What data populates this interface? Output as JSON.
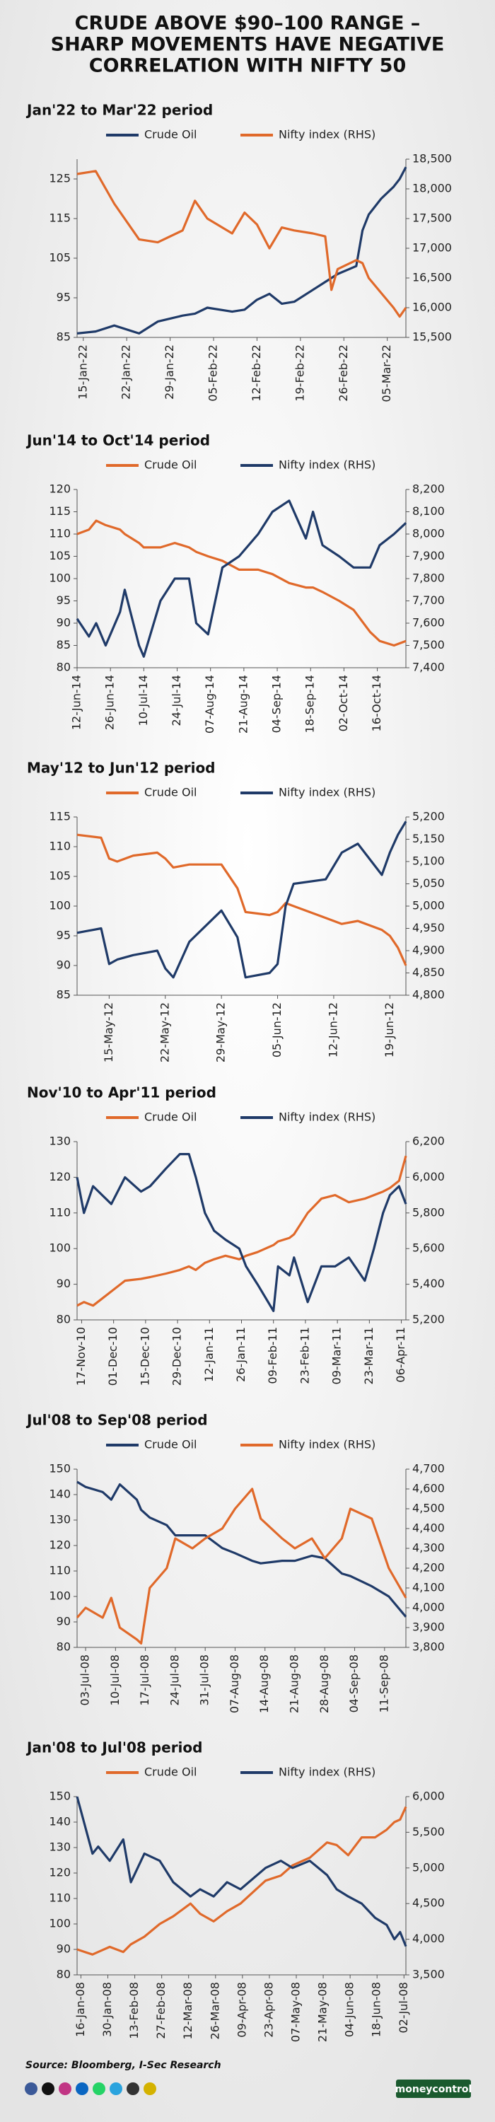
{
  "header": {
    "title_lines": [
      "CRUDE ABOVE $90–100 RANGE –",
      "SHARP MOVEMENTS HAVE NEGATIVE",
      "CORRELATION WITH NIFTY 50"
    ]
  },
  "chart_data": [
    {
      "type": "line",
      "title": "Jan'22 to Mar'22 period",
      "x": [
        "14-Jan-22",
        "17-Jan-22",
        "20-Jan-22",
        "24-Jan-22",
        "27-Jan-22",
        "31-Jan-22",
        "02-Feb-22",
        "04-Feb-22",
        "08-Feb-22",
        "10-Feb-22",
        "12-Feb-22",
        "14-Feb-22",
        "16-Feb-22",
        "18-Feb-22",
        "21-Feb-22",
        "23-Feb-22",
        "24-Feb-22",
        "25-Feb-22",
        "28-Feb-22",
        "01-Mar-22",
        "02-Mar-22",
        "04-Mar-22",
        "06-Mar-22",
        "07-Mar-22",
        "08-Mar-22"
      ],
      "xticks": [
        "15-Jan-22",
        "22-Jan-22",
        "29-Jan-22",
        "05-Feb-22",
        "12-Feb-22",
        "19-Feb-22",
        "26-Feb-22",
        "05-Mar-22"
      ],
      "series": [
        {
          "name": "Crude Oil",
          "color": "#1f3a68",
          "values": [
            86,
            86.5,
            88,
            86,
            89,
            90.5,
            91,
            92.5,
            91.5,
            92,
            94.5,
            96,
            93.5,
            94,
            97,
            99,
            100,
            101,
            103,
            112,
            116,
            120,
            123,
            125,
            128
          ]
        },
        {
          "name": "Nifty index (RHS)",
          "color": "#e0692a",
          "axis": "y2",
          "values": [
            18250,
            18300,
            17750,
            17150,
            17100,
            17300,
            17800,
            17500,
            17250,
            17600,
            17400,
            17000,
            17350,
            17300,
            17250,
            17200,
            16300,
            16650,
            16800,
            16750,
            16500,
            16250,
            16000,
            15850,
            16000
          ]
        }
      ],
      "ylim": [
        85,
        130
      ],
      "yticks": [
        85,
        95,
        105,
        115,
        125
      ],
      "y2lim": [
        15500,
        18500
      ],
      "y2ticks": [
        {
          "value": 15500,
          "label": "15,500"
        },
        {
          "value": 16000,
          "label": "16,000"
        },
        {
          "value": 16500,
          "label": "16,500"
        },
        {
          "value": 17000,
          "label": "17,000"
        },
        {
          "value": 17500,
          "label": "17,500"
        },
        {
          "value": 18000,
          "label": "18,000"
        },
        {
          "value": 18500,
          "label": "18,500"
        }
      ]
    },
    {
      "type": "line",
      "title": "Jun'14 to Oct'14 period",
      "x": [
        "12-Jun-14",
        "17-Jun-14",
        "20-Jun-14",
        "24-Jun-14",
        "30-Jun-14",
        "02-Jul-14",
        "08-Jul-14",
        "10-Jul-14",
        "17-Jul-14",
        "23-Jul-14",
        "29-Jul-14",
        "01-Aug-14",
        "06-Aug-14",
        "12-Aug-14",
        "19-Aug-14",
        "27-Aug-14",
        "02-Sep-14",
        "09-Sep-14",
        "16-Sep-14",
        "19-Sep-14",
        "23-Sep-14",
        "30-Sep-14",
        "06-Oct-14",
        "13-Oct-14",
        "17-Oct-14",
        "23-Oct-14",
        "28-Oct-14"
      ],
      "xticks": [
        "12-Jun-14",
        "26-Jun-14",
        "10-Jul-14",
        "24-Jul-14",
        "07-Aug-14",
        "21-Aug-14",
        "04-Sep-14",
        "18-Sep-14",
        "02-Oct-14",
        "16-Oct-14"
      ],
      "series": [
        {
          "name": "Crude Oil",
          "color": "#e0692a",
          "values": [
            110,
            111,
            113,
            112,
            111,
            110,
            108,
            107,
            107,
            108,
            107,
            106,
            105,
            104,
            102,
            102,
            101,
            99,
            98,
            98,
            97,
            95,
            93,
            88,
            86,
            85,
            86
          ]
        },
        {
          "name": "Nifty index (RHS)",
          "color": "#1f3a68",
          "axis": "y2",
          "values": [
            7620,
            7540,
            7600,
            7500,
            7650,
            7750,
            7500,
            7450,
            7700,
            7800,
            7800,
            7600,
            7550,
            7850,
            7900,
            8000,
            8100,
            8150,
            7980,
            8100,
            7950,
            7900,
            7850,
            7850,
            7950,
            8000,
            8050
          ]
        }
      ],
      "ylim": [
        80,
        120
      ],
      "yticks": [
        80,
        85,
        90,
        95,
        100,
        105,
        110,
        115,
        120
      ],
      "y2lim": [
        7400,
        8200
      ],
      "y2ticks": [
        {
          "value": 7400,
          "label": "7,400"
        },
        {
          "value": 7500,
          "label": "7,500"
        },
        {
          "value": 7600,
          "label": "7,600"
        },
        {
          "value": 7700,
          "label": "7,700"
        },
        {
          "value": 7800,
          "label": "7,800"
        },
        {
          "value": 7900,
          "label": "7,900"
        },
        {
          "value": 8000,
          "label": "8,000"
        },
        {
          "value": 8100,
          "label": "8,100"
        },
        {
          "value": 8200,
          "label": "8,200"
        }
      ]
    },
    {
      "type": "line",
      "title": "May'12 to Jun'12 period",
      "x": [
        "11-May-12",
        "14-May-12",
        "15-May-12",
        "16-May-12",
        "18-May-12",
        "21-May-12",
        "22-May-12",
        "23-May-12",
        "25-May-12",
        "29-May-12",
        "31-May-12",
        "01-Jun-12",
        "04-Jun-12",
        "05-Jun-12",
        "06-Jun-12",
        "07-Jun-12",
        "11-Jun-12",
        "13-Jun-12",
        "15-Jun-12",
        "18-Jun-12",
        "19-Jun-12",
        "20-Jun-12",
        "21-Jun-12"
      ],
      "xticks": [
        "15-May-12",
        "22-May-12",
        "29-May-12",
        "05-Jun-12",
        "12-Jun-12",
        "19-Jun-12"
      ],
      "series": [
        {
          "name": "Crude Oil",
          "color": "#e0692a",
          "values": [
            112,
            111.5,
            108,
            107.5,
            108.5,
            109,
            108,
            106.5,
            107,
            107,
            103,
            99,
            98.5,
            99,
            100.5,
            100,
            98,
            97,
            97.5,
            96,
            95,
            93,
            90
          ]
        },
        {
          "name": "Nifty index (RHS)",
          "color": "#1f3a68",
          "axis": "y2",
          "values": [
            4940,
            4950,
            4870,
            4880,
            4890,
            4900,
            4860,
            4840,
            4920,
            4990,
            4930,
            4840,
            4850,
            4870,
            5000,
            5050,
            5060,
            5120,
            5140,
            5070,
            5120,
            5160,
            5190
          ]
        }
      ],
      "ylim": [
        85,
        115
      ],
      "yticks": [
        85,
        90,
        95,
        100,
        105,
        110,
        115
      ],
      "y2lim": [
        4800,
        5200
      ],
      "y2ticks": [
        {
          "value": 4800,
          "label": "4,800"
        },
        {
          "value": 4850,
          "label": "4,850"
        },
        {
          "value": 4900,
          "label": "4,900"
        },
        {
          "value": 4950,
          "label": "4,950"
        },
        {
          "value": 5000,
          "label": "5,000"
        },
        {
          "value": 5050,
          "label": "5,050"
        },
        {
          "value": 5100,
          "label": "5,100"
        },
        {
          "value": 5150,
          "label": "5,150"
        },
        {
          "value": 5200,
          "label": "5,200"
        }
      ]
    },
    {
      "type": "line",
      "title": "Nov'10 to Apr'11 period",
      "x": [
        "15-Nov-10",
        "18-Nov-10",
        "22-Nov-10",
        "26-Nov-10",
        "30-Nov-10",
        "06-Dec-10",
        "13-Dec-10",
        "17-Dec-10",
        "24-Dec-10",
        "30-Dec-10",
        "03-Jan-11",
        "06-Jan-11",
        "10-Jan-11",
        "14-Jan-11",
        "19-Jan-11",
        "25-Jan-11",
        "28-Jan-11",
        "02-Feb-11",
        "09-Feb-11",
        "11-Feb-11",
        "16-Feb-11",
        "18-Feb-11",
        "24-Feb-11",
        "02-Mar-11",
        "08-Mar-11",
        "14-Mar-11",
        "21-Mar-11",
        "25-Mar-11",
        "29-Mar-11",
        "01-Apr-11",
        "05-Apr-11",
        "08-Apr-11"
      ],
      "xticks": [
        "17-Nov-10",
        "01-Dec-10",
        "15-Dec-10",
        "29-Dec-10",
        "12-Jan-11",
        "26-Jan-11",
        "09-Feb-11",
        "23-Feb-11",
        "09-Mar-11",
        "23-Mar-11",
        "06-Apr-11"
      ],
      "series": [
        {
          "name": "Crude Oil",
          "color": "#e0692a",
          "values": [
            84,
            85,
            84,
            86,
            88,
            91,
            91.5,
            92,
            93,
            94,
            95,
            94,
            96,
            97,
            98,
            97,
            98,
            99,
            101,
            102,
            103,
            104,
            110,
            114,
            115,
            113,
            114,
            115,
            116,
            117,
            119,
            126
          ]
        },
        {
          "name": "Nifty index (RHS)",
          "color": "#1f3a68",
          "axis": "y2",
          "values": [
            6000,
            5800,
            5950,
            5900,
            5850,
            6000,
            5920,
            5950,
            6050,
            6130,
            6130,
            6000,
            5800,
            5700,
            5650,
            5600,
            5500,
            5400,
            5250,
            5500,
            5450,
            5550,
            5300,
            5500,
            5500,
            5550,
            5420,
            5600,
            5800,
            5900,
            5950,
            5850
          ]
        }
      ],
      "ylim": [
        80,
        130
      ],
      "yticks": [
        80,
        90,
        100,
        110,
        120,
        130
      ],
      "y2lim": [
        5200,
        6200
      ],
      "y2ticks": [
        {
          "value": 5200,
          "label": "5,200"
        },
        {
          "value": 5400,
          "label": "5,400"
        },
        {
          "value": 5600,
          "label": "5,600"
        },
        {
          "value": 5800,
          "label": "5,800"
        },
        {
          "value": 6000,
          "label": "6,000"
        },
        {
          "value": 6200,
          "label": "6,200"
        }
      ]
    },
    {
      "type": "line",
      "title": "Jul'08 to Sep'08 period",
      "x": [
        "01-Jul-08",
        "03-Jul-08",
        "07-Jul-08",
        "09-Jul-08",
        "11-Jul-08",
        "15-Jul-08",
        "16-Jul-08",
        "18-Jul-08",
        "22-Jul-08",
        "24-Jul-08",
        "28-Jul-08",
        "31-Jul-08",
        "04-Aug-08",
        "07-Aug-08",
        "11-Aug-08",
        "13-Aug-08",
        "18-Aug-08",
        "21-Aug-08",
        "25-Aug-08",
        "28-Aug-08",
        "01-Sep-08",
        "03-Sep-08",
        "08-Sep-08",
        "12-Sep-08",
        "16-Sep-08"
      ],
      "xticks": [
        "03-Jul-08",
        "10-Jul-08",
        "17-Jul-08",
        "24-Jul-08",
        "31-Jul-08",
        "07-Aug-08",
        "14-Aug-08",
        "21-Aug-08",
        "28-Aug-08",
        "04-Sep-08",
        "11-Sep-08"
      ],
      "series": [
        {
          "name": "Crude Oil",
          "color": "#1f3a68",
          "values": [
            145,
            143,
            141,
            138,
            144,
            138,
            134,
            131,
            128,
            124,
            124,
            124,
            119,
            117,
            114,
            113,
            114,
            114,
            116,
            115,
            109,
            108,
            104,
            100,
            92
          ]
        },
        {
          "name": "Nifty index (RHS)",
          "color": "#e0692a",
          "axis": "y2",
          "values": [
            3950,
            4000,
            3950,
            4050,
            3900,
            3840,
            3820,
            4100,
            4200,
            4350,
            4300,
            4350,
            4400,
            4500,
            4600,
            4450,
            4350,
            4300,
            4350,
            4250,
            4350,
            4500,
            4450,
            4200,
            4050
          ]
        }
      ],
      "ylim": [
        80,
        150
      ],
      "yticks": [
        80,
        90,
        100,
        110,
        120,
        130,
        140,
        150
      ],
      "y2lim": [
        3800,
        4700
      ],
      "y2ticks": [
        {
          "value": 3800,
          "label": "3,800"
        },
        {
          "value": 3900,
          "label": "3,900"
        },
        {
          "value": 4000,
          "label": "4,000"
        },
        {
          "value": 4100,
          "label": "4,100"
        },
        {
          "value": 4200,
          "label": "4,200"
        },
        {
          "value": 4300,
          "label": "4,300"
        },
        {
          "value": 4400,
          "label": "4,400"
        },
        {
          "value": 4500,
          "label": "4,500"
        },
        {
          "value": 4600,
          "label": "4,600"
        },
        {
          "value": 4700,
          "label": "4,700"
        }
      ]
    },
    {
      "type": "line",
      "title": "Jan'08 to Jul'08 period",
      "x": [
        "14-Jan-08",
        "22-Jan-08",
        "25-Jan-08",
        "31-Jan-08",
        "07-Feb-08",
        "11-Feb-08",
        "18-Feb-08",
        "26-Feb-08",
        "04-Mar-08",
        "13-Mar-08",
        "18-Mar-08",
        "25-Mar-08",
        "01-Apr-08",
        "08-Apr-08",
        "21-Apr-08",
        "29-Apr-08",
        "05-May-08",
        "14-May-08",
        "23-May-08",
        "28-May-08",
        "03-Jun-08",
        "10-Jun-08",
        "17-Jun-08",
        "23-Jun-08",
        "27-Jun-08",
        "30-Jun-08",
        "03-Jul-08"
      ],
      "xticks": [
        "16-Jan-08",
        "30-Jan-08",
        "13-Feb-08",
        "27-Feb-08",
        "12-Mar-08",
        "26-Mar-08",
        "09-Apr-08",
        "23-Apr-08",
        "07-May-08",
        "21-May-08",
        "04-Jun-08",
        "18-Jun-08",
        "02-Jul-08"
      ],
      "series": [
        {
          "name": "Crude Oil",
          "color": "#e0692a",
          "values": [
            90,
            88,
            89,
            91,
            89,
            92,
            95,
            100,
            103,
            108,
            104,
            101,
            105,
            108,
            117,
            119,
            123,
            126,
            132,
            131,
            127,
            134,
            134,
            137,
            140,
            141,
            146
          ]
        },
        {
          "name": "Nifty index (RHS)",
          "color": "#1f3a68",
          "axis": "y2",
          "values": [
            6000,
            5200,
            5300,
            5100,
            5400,
            4800,
            5200,
            5100,
            4800,
            4600,
            4700,
            4600,
            4800,
            4700,
            5000,
            5100,
            5000,
            5100,
            4900,
            4700,
            4600,
            4500,
            4300,
            4200,
            4000,
            4100,
            3900
          ]
        }
      ],
      "ylim": [
        80,
        150
      ],
      "yticks": [
        80,
        90,
        100,
        110,
        120,
        130,
        140,
        150
      ],
      "y2lim": [
        3500,
        6000
      ],
      "y2ticks": [
        {
          "value": 3500,
          "label": "3,500"
        },
        {
          "value": 4000,
          "label": "4,000"
        },
        {
          "value": 4500,
          "label": "4,500"
        },
        {
          "value": 5000,
          "label": "5,000"
        },
        {
          "value": 5500,
          "label": "5,500"
        },
        {
          "value": 6000,
          "label": "6,000"
        }
      ]
    }
  ],
  "footer": {
    "source": "Source: Bloomberg, I-Sec Research",
    "logo": "moneycontrol"
  }
}
